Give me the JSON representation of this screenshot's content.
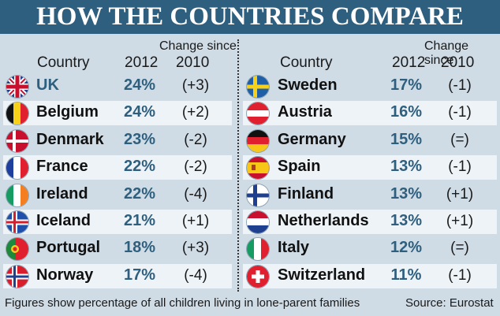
{
  "title": "HOW THE COUNTRIES COMPARE",
  "headers": {
    "country": "Country",
    "year": "2012",
    "change_since": "Change since",
    "change_year": "2010"
  },
  "chart_data": {
    "type": "table",
    "title": "HOW THE COUNTRIES COMPARE",
    "columns": [
      "Country",
      "2012",
      "Change since 2010"
    ],
    "left": [
      {
        "country": "UK",
        "flag": "uk-flag-icon",
        "value": "24%",
        "change": "(+3)"
      },
      {
        "country": "Belgium",
        "flag": "belgium-flag-icon",
        "value": "24%",
        "change": "(+2)"
      },
      {
        "country": "Denmark",
        "flag": "denmark-flag-icon",
        "value": "23%",
        "change": "(-2)"
      },
      {
        "country": "France",
        "flag": "france-flag-icon",
        "value": "22%",
        "change": "(-2)"
      },
      {
        "country": "Ireland",
        "flag": "ireland-flag-icon",
        "value": "22%",
        "change": "(-4)"
      },
      {
        "country": "Iceland",
        "flag": "iceland-flag-icon",
        "value": "21%",
        "change": "(+1)"
      },
      {
        "country": "Portugal",
        "flag": "portugal-flag-icon",
        "value": "18%",
        "change": "(+3)"
      },
      {
        "country": "Norway",
        "flag": "norway-flag-icon",
        "value": "17%",
        "change": "(-4)"
      }
    ],
    "right": [
      {
        "country": "Sweden",
        "flag": "sweden-flag-icon",
        "value": "17%",
        "change": "(-1)"
      },
      {
        "country": "Austria",
        "flag": "austria-flag-icon",
        "value": "16%",
        "change": "(-1)"
      },
      {
        "country": "Germany",
        "flag": "germany-flag-icon",
        "value": "15%",
        "change": "(=)"
      },
      {
        "country": "Spain",
        "flag": "spain-flag-icon",
        "value": "13%",
        "change": "(-1)"
      },
      {
        "country": "Finland",
        "flag": "finland-flag-icon",
        "value": "13%",
        "change": "(+1)"
      },
      {
        "country": "Netherlands",
        "flag": "netherlands-flag-icon",
        "value": "13%",
        "change": "(+1)"
      },
      {
        "country": "Italy",
        "flag": "italy-flag-icon",
        "value": "12%",
        "change": "(=)"
      },
      {
        "country": "Switzerland",
        "flag": "switzerland-flag-icon",
        "value": "11%",
        "change": "(-1)"
      }
    ]
  },
  "footer": {
    "note": "Figures show percentage of all children living in lone-parent families",
    "source": "Source: Eurostat"
  },
  "colors": {
    "header_bar": "#2e5f7e",
    "value_text": "#2e5f7e",
    "background": "#cfdce6",
    "stripe": "#eef3f7"
  }
}
